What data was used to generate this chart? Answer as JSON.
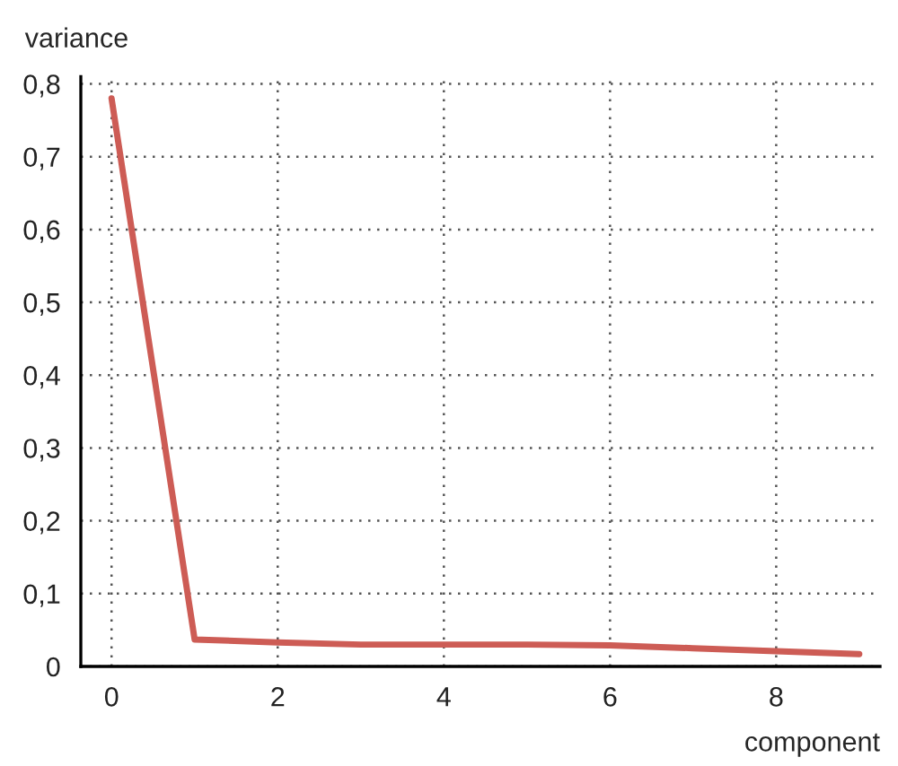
{
  "chart_data": {
    "type": "line",
    "xlabel": "component",
    "ylabel": "variance",
    "x": [
      0,
      1,
      2,
      3,
      4,
      5,
      6,
      7,
      8,
      9
    ],
    "series": [
      {
        "color": "#cd5c55",
        "values": [
          0.78,
          0.037,
          0.033,
          0.03,
          0.03,
          0.03,
          0.029,
          0.025,
          0.021,
          0.017
        ]
      }
    ],
    "xlim": [
      -0.37,
      9.25
    ],
    "ylim": [
      0,
      0.81
    ],
    "xticks": [
      0,
      2,
      4,
      6,
      8
    ],
    "yticks": [
      {
        "value": 0,
        "label": "0"
      },
      {
        "value": 0.1,
        "label": "0,1"
      },
      {
        "value": 0.2,
        "label": "0,2"
      },
      {
        "value": 0.3,
        "label": "0,3"
      },
      {
        "value": 0.4,
        "label": "0,4"
      },
      {
        "value": 0.5,
        "label": "0,5"
      },
      {
        "value": 0.6,
        "label": "0,6"
      },
      {
        "value": 0.7,
        "label": "0,7"
      },
      {
        "value": 0.8,
        "label": "0,8"
      }
    ],
    "grid": true,
    "marker": "none",
    "line_style": "solid"
  }
}
